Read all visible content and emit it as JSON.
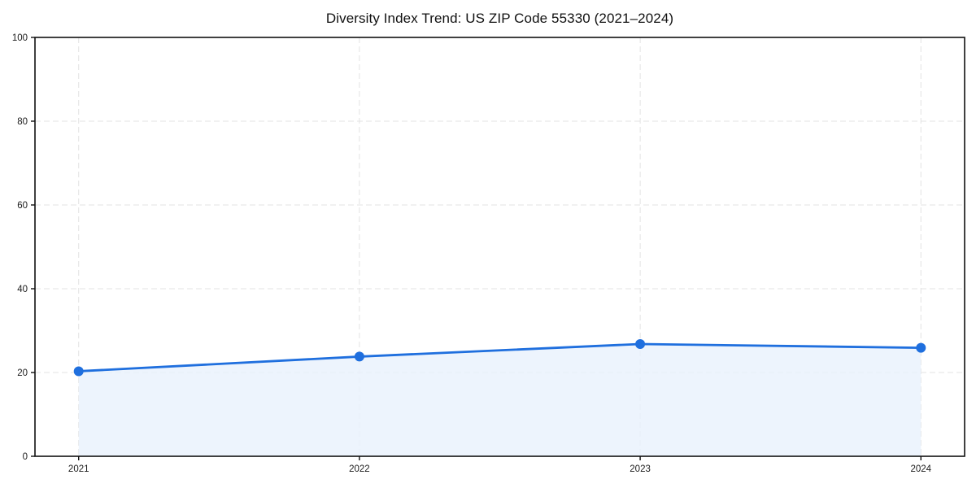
{
  "chart_data": {
    "type": "line",
    "title": "Diversity Index Trend: US ZIP Code 55330 (2021–2024)",
    "x": [
      "2021",
      "2022",
      "2023",
      "2024"
    ],
    "series": [
      {
        "name": "Diversity Index",
        "values": [
          20.3,
          23.8,
          26.8,
          25.9
        ]
      }
    ],
    "xlabel": "",
    "ylabel": "",
    "ylim": [
      0,
      100
    ],
    "yticks": [
      0,
      20,
      40,
      60,
      80,
      100
    ],
    "grid": "dashed both axes",
    "legend_position": "none",
    "line_color": "#1f6fde",
    "marker": "circle",
    "fill_area": true,
    "fill_color": "#e9f1fc",
    "gridline_color": "#e3e3e3",
    "spine_color": "#111111",
    "background_color": "#ffffff"
  }
}
